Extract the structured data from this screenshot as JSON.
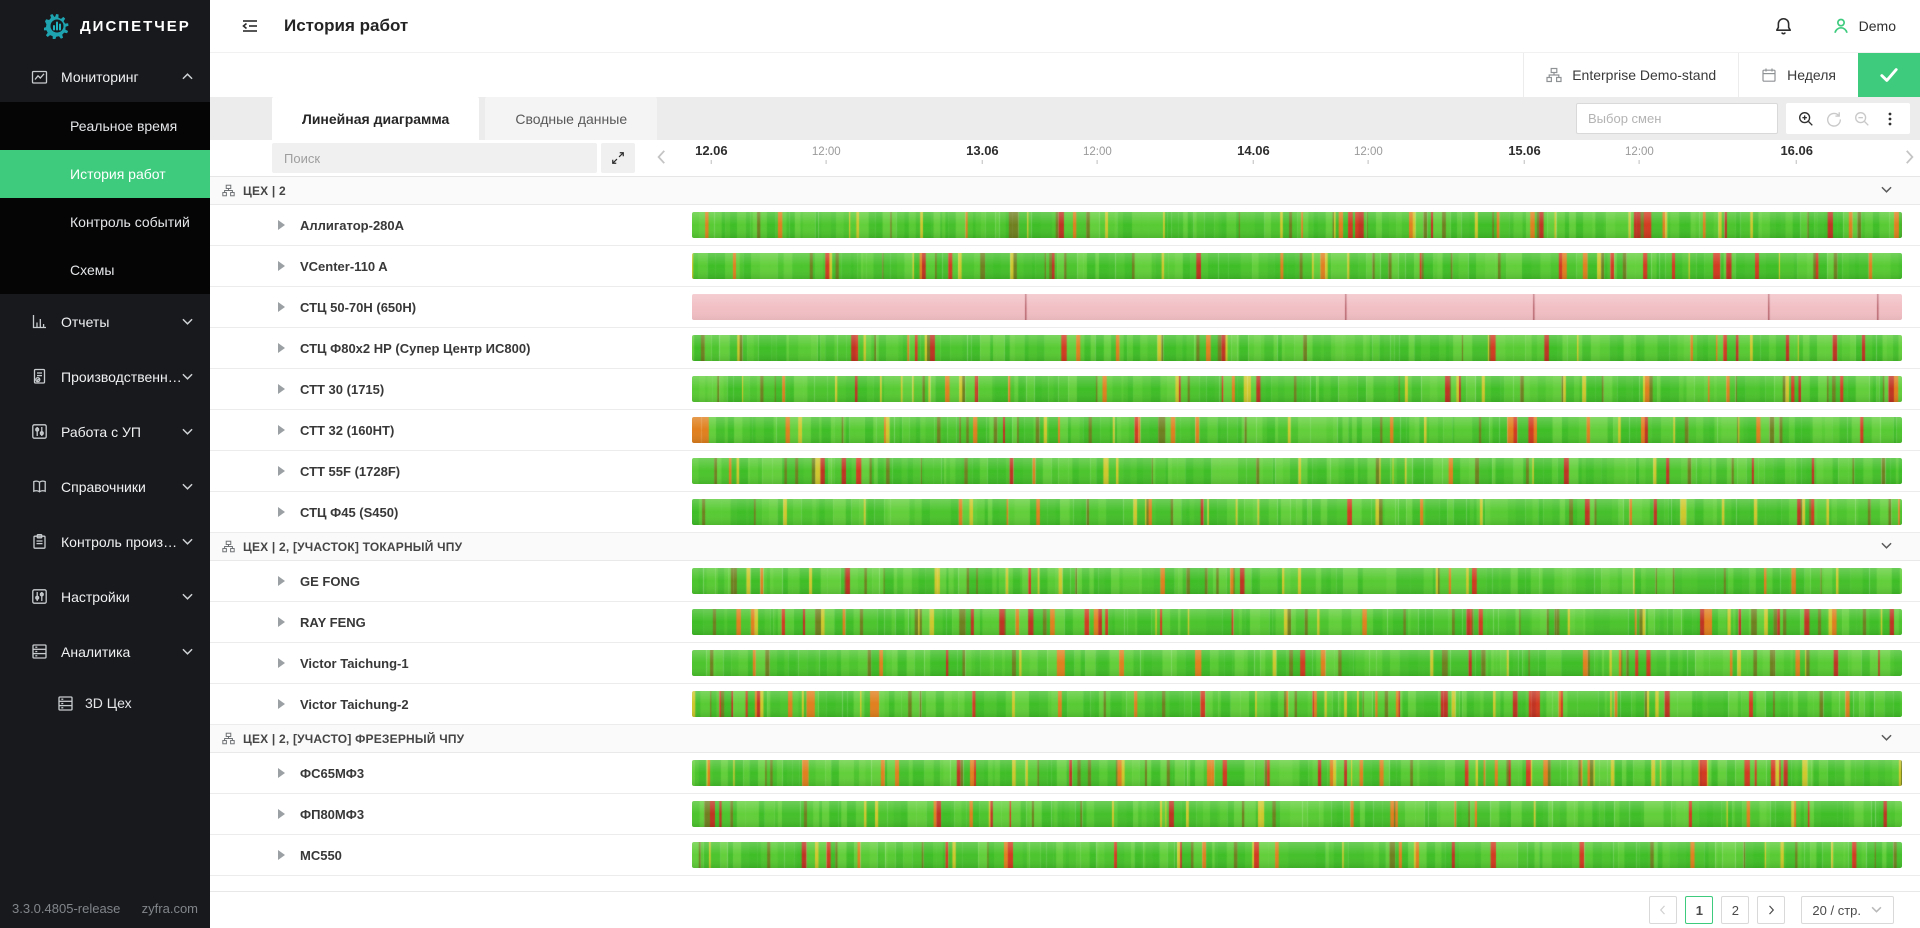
{
  "colors": {
    "accent_green": "#3ecb7e",
    "sidebar_bg": "#17191d",
    "submenu_bg": "#050506",
    "bar_greens": [
      "#3fbe27",
      "#4cc52d",
      "#58cb33",
      "#45c02b",
      "#62cf3a"
    ],
    "bar_olive": "#6f7f1f",
    "bar_yellow": "#cfc92d",
    "bar_orange": "#e0801e",
    "bar_reds": [
      "#d23a20",
      "#c03322"
    ],
    "pink_base": "#f1bfc4",
    "pink_line": "#b9666e"
  },
  "sidebar": {
    "logo_text": "ДИСПЕТЧЕР",
    "items": [
      {
        "label": "Мониторинг",
        "icon": "monitoring-icon",
        "chevron": "up",
        "dark": true,
        "children": [
          {
            "label": "Реальное время"
          },
          {
            "label": "История работ",
            "active": true
          },
          {
            "label": "Контроль событий"
          },
          {
            "label": "Схемы"
          }
        ]
      },
      {
        "label": "Отчеты",
        "icon": "reports-icon",
        "chevron": "down"
      },
      {
        "label": "Производственные ж...",
        "icon": "journals-icon",
        "chevron": "down"
      },
      {
        "label": "Работа с УП",
        "icon": "nc-programs-icon",
        "chevron": "down"
      },
      {
        "label": "Справочники",
        "icon": "references-icon",
        "chevron": "down"
      },
      {
        "label": "Контроль производства",
        "icon": "production-control-icon",
        "chevron": "down"
      },
      {
        "label": "Настройки",
        "icon": "settings-icon",
        "chevron": "down"
      },
      {
        "label": "Аналитика",
        "icon": "analytics-icon",
        "chevron": "down",
        "children": [
          {
            "label": "3D Цех",
            "icon": "shop3d-icon"
          }
        ]
      }
    ],
    "footer_version": "3.3.0.4805-release",
    "footer_site": "zyfra.com"
  },
  "header": {
    "title": "История работ",
    "user": "Demo"
  },
  "toolbar": {
    "stand": "Enterprise Demo-stand",
    "period": "Неделя"
  },
  "tabs": {
    "tab1": "Линейная диаграмма",
    "tab2": "Сводные данные"
  },
  "filters": {
    "search_placeholder": "Поиск",
    "shift_placeholder": "Выбор смен"
  },
  "timeline": {
    "ticks": [
      {
        "label": "12.06",
        "type": "date",
        "pct": 1.6
      },
      {
        "label": "12:00",
        "type": "time",
        "pct": 11.1
      },
      {
        "label": "13.06",
        "type": "date",
        "pct": 24.0
      },
      {
        "label": "12:00",
        "type": "time",
        "pct": 33.5
      },
      {
        "label": "14.06",
        "type": "date",
        "pct": 46.4
      },
      {
        "label": "12:00",
        "type": "time",
        "pct": 55.9
      },
      {
        "label": "15.06",
        "type": "date",
        "pct": 68.8
      },
      {
        "label": "12:00",
        "type": "time",
        "pct": 78.3
      },
      {
        "label": "16.06",
        "type": "date",
        "pct": 91.3
      }
    ]
  },
  "groups": [
    {
      "title": "ЦЕХ | 2",
      "machines": [
        {
          "name": "Аллигатор-280А",
          "bar": "striped",
          "seed": 11
        },
        {
          "name": "VCenter-110 A",
          "bar": "striped",
          "seed": 23
        },
        {
          "name": "СТЦ 50-70Н (650Н)",
          "bar": "pink",
          "lines": [
            0.275,
            0.54,
            0.695,
            0.889,
            0.979
          ]
        },
        {
          "name": "СТЦ Ф80х2 НР (Супер Центр ИС800)",
          "bar": "striped",
          "seed": 37
        },
        {
          "name": "СТТ 30 (1715)",
          "bar": "striped",
          "seed": 41,
          "redBias": true
        },
        {
          "name": "СТТ 32 (160НТ)",
          "bar": "striped",
          "seed": 53
        },
        {
          "name": "СТТ 55F (1728F)",
          "bar": "striped",
          "seed": 67
        },
        {
          "name": "СТЦ Ф45 (S450)",
          "bar": "striped",
          "seed": 71
        }
      ]
    },
    {
      "title": "ЦЕХ | 2, [УЧАСТОК] ТОКАРНЫЙ ЧПУ",
      "machines": [
        {
          "name": "GE FONG",
          "bar": "striped",
          "seed": 83
        },
        {
          "name": "RAY FENG",
          "bar": "striped",
          "seed": 89,
          "redBias": true
        },
        {
          "name": "Victor Taichung-1",
          "bar": "striped",
          "seed": 97
        },
        {
          "name": "Victor Taichung-2",
          "bar": "striped",
          "seed": 101,
          "redBias": true
        }
      ]
    },
    {
      "title": "ЦЕХ | 2, [УЧАСТО] ФРЕЗЕРНЫЙ ЧПУ",
      "machines": [
        {
          "name": "ФС65МФ3",
          "bar": "striped",
          "seed": 103,
          "redBias": true
        },
        {
          "name": "ФП80МФ3",
          "bar": "striped",
          "seed": 107
        },
        {
          "name": "МС550",
          "bar": "striped",
          "seed": 109
        }
      ]
    }
  ],
  "pagination": {
    "prev": "<",
    "page1": "1",
    "page2": "2",
    "next": ">",
    "size": "20 / стр."
  }
}
